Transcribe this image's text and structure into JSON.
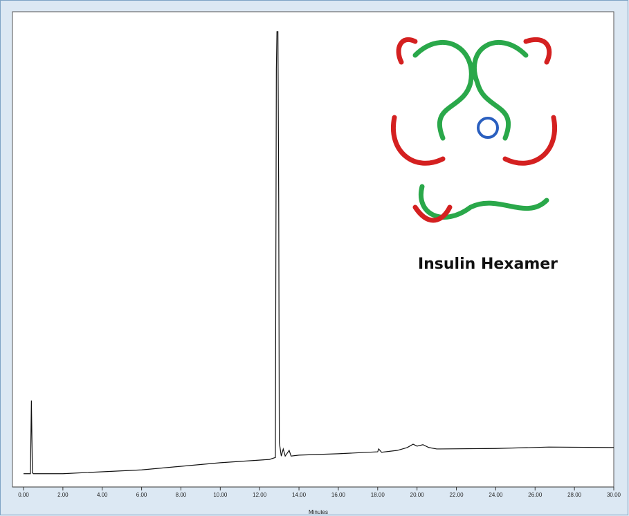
{
  "chart_data": {
    "type": "line",
    "annotation": "Insulin Hexamer",
    "x_label": "Minutes",
    "x": [
      0,
      0.35,
      0.4,
      0.45,
      0.5,
      2,
      6,
      10,
      12.5,
      12.8,
      12.85,
      12.88,
      12.93,
      12.97,
      13.0,
      13.1,
      13.2,
      13.3,
      13.5,
      13.6,
      14,
      16,
      18,
      18.05,
      18.2,
      19,
      19.5,
      19.8,
      20.0,
      20.3,
      20.6,
      21,
      24,
      26.7,
      30
    ],
    "values": [
      2.8,
      2.8,
      18.2,
      3.0,
      2.8,
      2.8,
      3.6,
      5.1,
      5.8,
      6.2,
      88,
      95.8,
      95.8,
      60,
      9.4,
      6.5,
      8.0,
      6.5,
      7.7,
      6.5,
      6.7,
      7.0,
      7.4,
      8.0,
      7.3,
      7.7,
      8.3,
      9.0,
      8.6,
      8.9,
      8.3,
      8.0,
      8.1,
      8.4,
      8.3
    ],
    "color": "#111111",
    "xlim": [
      0,
      30
    ],
    "ylim": [
      0,
      100
    ],
    "xticks": [
      {
        "value": 0,
        "label": "0.00"
      },
      {
        "value": 2,
        "label": "2.00"
      },
      {
        "value": 4,
        "label": "4.00"
      },
      {
        "value": 6,
        "label": "6.00"
      },
      {
        "value": 8,
        "label": "8.00"
      },
      {
        "value": 10,
        "label": "10.00"
      },
      {
        "value": 12,
        "label": "12.00"
      },
      {
        "value": 14,
        "label": "14.00"
      },
      {
        "value": 16,
        "label": "16.00"
      },
      {
        "value": 18,
        "label": "18.00"
      },
      {
        "value": 20,
        "label": "20.00"
      },
      {
        "value": 22,
        "label": "22.00"
      },
      {
        "value": 24,
        "label": "24.00"
      },
      {
        "value": 26,
        "label": "26.00"
      },
      {
        "value": 28,
        "label": "28.00"
      },
      {
        "value": 30,
        "label": "30.00"
      }
    ]
  }
}
